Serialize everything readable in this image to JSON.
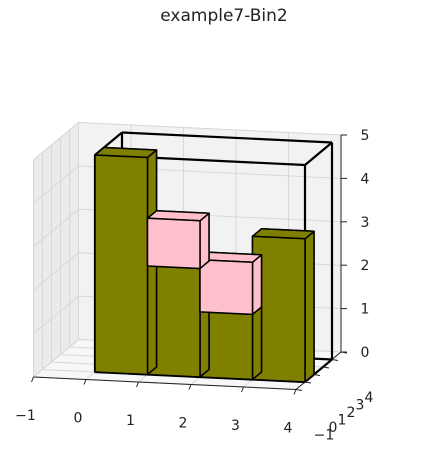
{
  "chart_data": {
    "type": "3d-bar",
    "title": "example7-Bin2",
    "xlabel": "",
    "ylabel": "",
    "zlabel": "",
    "x_ticks": [
      "−1",
      "0",
      "1",
      "2",
      "3",
      "4"
    ],
    "y_ticks": [
      "−1",
      "0",
      "1",
      "2",
      "3",
      "4"
    ],
    "z_ticks": [
      "0",
      "1",
      "2",
      "3",
      "4",
      "5"
    ],
    "xlim": [
      -1,
      4
    ],
    "ylim": [
      -1,
      4
    ],
    "zlim": [
      0,
      5
    ],
    "grid": true,
    "container": {
      "x": [
        0,
        4
      ],
      "y": [
        0,
        3
      ],
      "z": [
        0,
        5
      ],
      "style": "black wireframe"
    },
    "colors": {
      "olive": "#808000",
      "pink": "#ffc0cb",
      "edge": "#000000",
      "pane": "#f2f2f2"
    },
    "boxes": [
      {
        "color": "olive",
        "x": [
          0,
          1
        ],
        "y": [
          0,
          1
        ],
        "z": [
          0,
          5
        ]
      },
      {
        "color": "olive",
        "x": [
          1,
          2
        ],
        "y": [
          0,
          1
        ],
        "z": [
          0,
          2.5
        ]
      },
      {
        "color": "olive",
        "x": [
          2,
          3
        ],
        "y": [
          0,
          1
        ],
        "z": [
          0,
          1.5
        ]
      },
      {
        "color": "olive",
        "x": [
          3,
          4
        ],
        "y": [
          0,
          1
        ],
        "z": [
          0,
          3.3
        ]
      },
      {
        "color": "pink",
        "x": [
          1,
          2
        ],
        "y": [
          0,
          1
        ],
        "z": [
          2.5,
          3.6
        ]
      },
      {
        "color": "pink",
        "x": [
          2,
          3
        ],
        "y": [
          0,
          1
        ],
        "z": [
          1.5,
          2.7
        ]
      }
    ]
  }
}
